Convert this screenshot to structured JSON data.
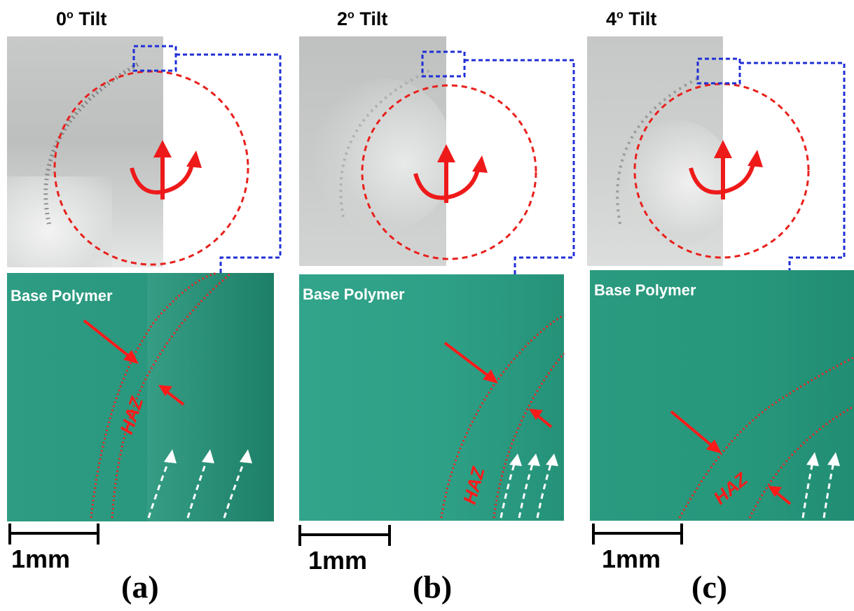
{
  "figure": {
    "panels": [
      {
        "id": "a",
        "tilt_value": "0",
        "tilt_unit": "o",
        "tilt_word": "Tilt",
        "region_label": "Base Polymer",
        "haz_label": "HAZ",
        "scale_label": "1mm",
        "panel_label": "(a)"
      },
      {
        "id": "b",
        "tilt_value": "2",
        "tilt_unit": "o",
        "tilt_word": "Tilt",
        "region_label": "Base Polymer",
        "haz_label": "HAZ",
        "scale_label": "1mm",
        "panel_label": "(b)"
      },
      {
        "id": "c",
        "tilt_value": "4",
        "tilt_unit": "o",
        "tilt_word": "Tilt",
        "region_label": "Base Polymer",
        "haz_label": "HAZ",
        "scale_label": "1mm",
        "panel_label": "(c)"
      }
    ],
    "colors": {
      "micrograph": "#2a9a80",
      "photo": "#c9cbca",
      "circle": "#e8201c",
      "zoom_box": "#1f2fd6",
      "haz_line": "#ff1a1a",
      "flow_arrow": "#ffffff"
    }
  }
}
